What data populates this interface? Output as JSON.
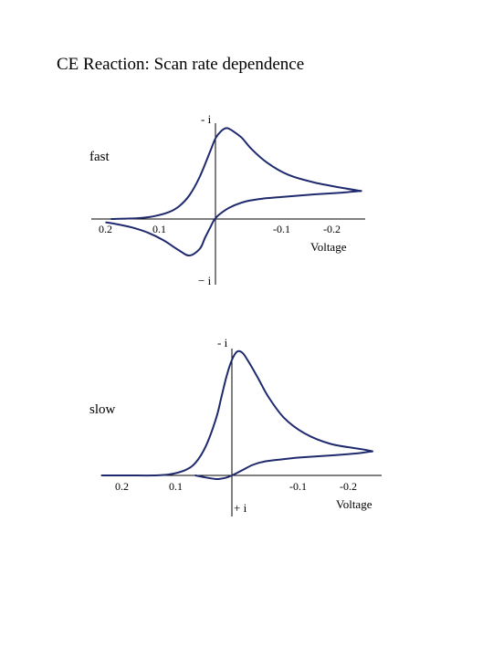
{
  "title": "CE Reaction: Scan rate dependence",
  "colors": {
    "curve": "#1f2a6e",
    "axis": "#000000"
  },
  "chart_data": [
    {
      "type": "line",
      "panel_label": "fast",
      "xlabel": "Voltage",
      "y_top_label": "- i",
      "y_bottom_label": "− i",
      "tick_labels": [
        "0.2",
        "0.1",
        "-0.1",
        "-0.2"
      ],
      "tick_values": [
        0.2,
        0.1,
        -0.1,
        -0.2
      ],
      "xlim": [
        0.25,
        -0.3
      ],
      "ylim": [
        -1.0,
        1.2
      ],
      "grid": false,
      "series": [
        {
          "x": [
            0.2,
            0.15,
            0.12,
            0.09,
            0.07,
            0.05,
            0.03,
            0.01,
            0.0,
            -0.01,
            -0.02,
            -0.03,
            -0.05,
            -0.07,
            -0.1,
            -0.14,
            -0.19,
            -0.25,
            -0.28
          ],
          "y": [
            0.0,
            0.01,
            0.03,
            0.08,
            0.15,
            0.28,
            0.5,
            0.8,
            0.95,
            1.03,
            1.07,
            1.05,
            0.96,
            0.82,
            0.66,
            0.52,
            0.43,
            0.36,
            0.33
          ]
        },
        {
          "x": [
            -0.28,
            -0.24,
            -0.19,
            -0.13,
            -0.09,
            -0.06,
            -0.04,
            -0.02,
            0.0,
            0.01,
            0.02,
            0.03,
            0.05,
            0.07,
            0.1,
            0.13,
            0.16,
            0.19,
            0.21
          ],
          "y": [
            0.33,
            0.31,
            0.29,
            0.26,
            0.24,
            0.21,
            0.17,
            0.11,
            0.01,
            -0.1,
            -0.22,
            -0.35,
            -0.43,
            -0.37,
            -0.25,
            -0.16,
            -0.1,
            -0.06,
            -0.04
          ]
        }
      ]
    },
    {
      "type": "line",
      "panel_label": "slow",
      "xlabel": "Voltage",
      "y_top_label": "- i",
      "y_bottom_label": "+ i",
      "tick_labels": [
        "0.2",
        "0.1",
        "-0.1",
        "-0.2"
      ],
      "tick_values": [
        0.2,
        0.1,
        -0.1,
        -0.2
      ],
      "xlim": [
        0.25,
        -0.3
      ],
      "ylim": [
        -0.3,
        1.35
      ],
      "grid": false,
      "series": [
        {
          "x": [
            0.25,
            0.2,
            0.15,
            0.12,
            0.09,
            0.07,
            0.05,
            0.03,
            0.02,
            0.01,
            0.0,
            -0.01,
            -0.02,
            -0.03,
            -0.05,
            -0.07,
            -0.1,
            -0.14,
            -0.19,
            -0.25,
            -0.27
          ],
          "y": [
            0.0,
            0.0,
            0.0,
            0.01,
            0.05,
            0.12,
            0.28,
            0.55,
            0.75,
            0.95,
            1.1,
            1.18,
            1.17,
            1.1,
            0.93,
            0.75,
            0.55,
            0.4,
            0.3,
            0.25,
            0.23
          ]
        },
        {
          "x": [
            -0.27,
            -0.24,
            -0.19,
            -0.13,
            -0.09,
            -0.06,
            -0.04,
            -0.02,
            0.0,
            0.01,
            0.02,
            0.03,
            0.05,
            0.07
          ],
          "y": [
            0.23,
            0.21,
            0.19,
            0.17,
            0.15,
            0.13,
            0.1,
            0.05,
            0.0,
            -0.02,
            -0.03,
            -0.035,
            -0.02,
            0.0
          ]
        }
      ]
    }
  ]
}
